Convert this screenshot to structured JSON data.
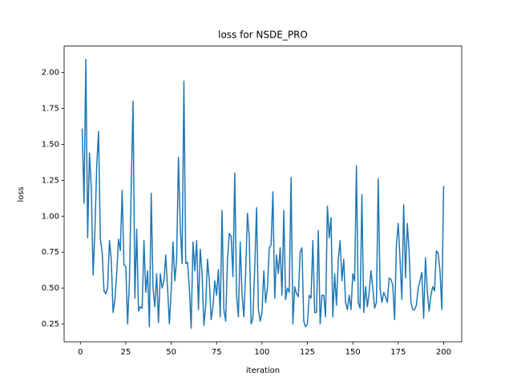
{
  "chart_data": {
    "type": "line",
    "title": "loss for NSDE_PRO",
    "x_label": "iteration",
    "y_label": "loss",
    "color": "#1f77b4",
    "x": [
      1,
      2,
      3,
      4,
      5,
      6,
      7,
      8,
      9,
      10,
      11,
      12,
      13,
      14,
      15,
      16,
      17,
      18,
      19,
      20,
      21,
      22,
      23,
      24,
      25,
      26,
      27,
      28,
      29,
      30,
      31,
      32,
      33,
      34,
      35,
      36,
      37,
      38,
      39,
      40,
      41,
      42,
      43,
      44,
      45,
      46,
      47,
      48,
      49,
      50,
      51,
      52,
      53,
      54,
      55,
      56,
      57,
      58,
      59,
      60,
      61,
      62,
      63,
      64,
      65,
      66,
      67,
      68,
      69,
      70,
      71,
      72,
      73,
      74,
      75,
      76,
      77,
      78,
      79,
      80,
      81,
      82,
      83,
      84,
      85,
      86,
      87,
      88,
      89,
      90,
      91,
      92,
      93,
      94,
      95,
      96,
      97,
      98,
      99,
      100,
      101,
      102,
      103,
      104,
      105,
      106,
      107,
      108,
      109,
      110,
      111,
      112,
      113,
      114,
      115,
      116,
      117,
      118,
      119,
      120,
      121,
      122,
      123,
      124,
      125,
      126,
      127,
      128,
      129,
      130,
      131,
      132,
      133,
      134,
      135,
      136,
      137,
      138,
      139,
      140,
      141,
      142,
      143,
      144,
      145,
      146,
      147,
      148,
      149,
      150,
      151,
      152,
      153,
      154,
      155,
      156,
      157,
      158,
      159,
      160,
      161,
      162,
      163,
      164,
      165,
      166,
      167,
      168,
      169,
      170,
      171,
      172,
      173,
      174,
      175,
      176,
      177,
      178,
      179,
      180,
      181,
      182,
      183,
      184,
      185,
      186,
      187,
      188,
      189,
      190,
      191,
      192,
      193,
      194,
      195,
      196,
      197,
      198,
      199,
      200
    ],
    "values": [
      1.61,
      1.09,
      2.09,
      0.85,
      1.44,
      1.2,
      0.59,
      0.9,
      1.35,
      1.59,
      0.84,
      0.75,
      0.48,
      0.46,
      0.5,
      0.83,
      0.7,
      0.33,
      0.42,
      0.6,
      0.84,
      0.76,
      1.18,
      0.66,
      0.65,
      0.25,
      0.55,
      1.2,
      1.8,
      0.43,
      0.91,
      0.34,
      0.37,
      0.36,
      0.83,
      0.47,
      0.62,
      0.23,
      1.16,
      0.5,
      0.37,
      0.6,
      0.26,
      0.6,
      0.5,
      0.55,
      0.73,
      0.5,
      0.25,
      0.48,
      0.82,
      0.55,
      0.7,
      1.41,
      0.93,
      0.67,
      1.94,
      0.67,
      0.68,
      0.5,
      0.22,
      0.82,
      0.62,
      0.83,
      0.35,
      0.77,
      0.6,
      0.24,
      0.38,
      0.7,
      0.55,
      0.28,
      0.37,
      0.55,
      0.45,
      0.63,
      0.3,
      1.04,
      0.35,
      0.27,
      0.7,
      0.88,
      0.86,
      0.58,
      1.3,
      0.45,
      0.3,
      0.82,
      0.46,
      0.3,
      0.61,
      1.02,
      0.85,
      0.25,
      0.29,
      0.64,
      1.06,
      0.35,
      0.27,
      0.33,
      0.62,
      0.4,
      0.5,
      0.78,
      0.8,
      1.17,
      0.43,
      0.73,
      0.6,
      0.78,
      0.45,
      1.04,
      0.42,
      0.5,
      0.47,
      1.27,
      0.25,
      0.51,
      0.46,
      0.44,
      0.75,
      0.78,
      0.27,
      0.23,
      0.25,
      0.45,
      0.43,
      0.83,
      0.33,
      0.33,
      0.9,
      0.25,
      0.45,
      0.45,
      0.3,
      1.07,
      0.85,
      0.99,
      0.3,
      0.6,
      0.38,
      0.7,
      0.83,
      0.55,
      0.7,
      0.4,
      0.35,
      0.45,
      0.35,
      0.6,
      0.55,
      1.35,
      0.4,
      0.36,
      1.15,
      0.33,
      0.51,
      0.37,
      0.47,
      0.62,
      0.5,
      0.36,
      0.4,
      1.26,
      0.5,
      0.4,
      0.47,
      0.44,
      0.4,
      0.57,
      0.56,
      0.52,
      0.28,
      0.8,
      0.95,
      0.7,
      0.42,
      1.08,
      0.57,
      0.95,
      0.75,
      0.4,
      0.35,
      0.35,
      0.38,
      0.5,
      0.55,
      0.61,
      0.29,
      0.71,
      0.48,
      0.34,
      0.45,
      0.51,
      0.48,
      0.76,
      0.74,
      0.62,
      0.35,
      1.21
    ],
    "xlim": [
      -8.95,
      209.95
    ],
    "xticks": [
      0,
      25,
      50,
      75,
      100,
      125,
      150,
      175,
      200
    ],
    "ylim": [
      0.1265,
      2.1835
    ],
    "yticks": [
      0.25,
      {
        "value": 0.5,
        "label": "0.50"
      },
      0.75,
      {
        "value": 1,
        "label": "1.00"
      },
      1.25,
      {
        "value": 1.5,
        "label": "1.50"
      },
      1.75,
      {
        "value": 2,
        "label": "2.00"
      }
    ]
  }
}
